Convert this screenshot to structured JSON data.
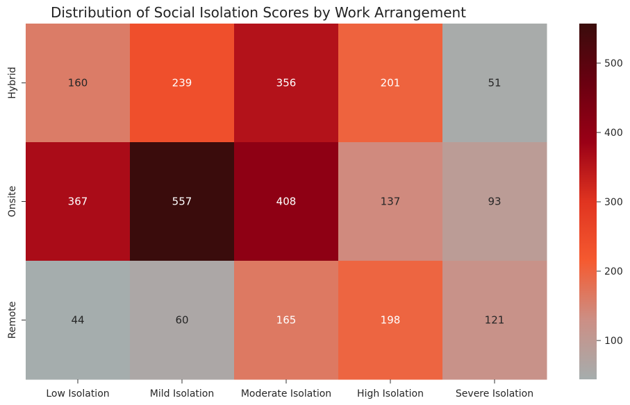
{
  "chart_data": {
    "type": "heatmap",
    "title": "Distribution of Social Isolation Scores by Work Arrangement",
    "xlabel": "",
    "ylabel": "",
    "columns": [
      "Low Isolation",
      "Mild Isolation",
      "Moderate Isolation",
      "High Isolation",
      "Severe Isolation"
    ],
    "rows": [
      "Hybrid",
      "Onsite",
      "Remote"
    ],
    "values": [
      [
        160,
        239,
        356,
        201,
        51
      ],
      [
        367,
        557,
        408,
        137,
        93
      ],
      [
        44,
        60,
        165,
        198,
        121
      ]
    ],
    "colorbar": {
      "min": 44,
      "max": 557,
      "ticks": [
        100,
        200,
        300,
        400,
        500
      ],
      "colors": [
        "#a5adad",
        "#cc8f85",
        "#f55a30",
        "#e03420",
        "#9a0016",
        "#6a0010",
        "#3a0c0c"
      ]
    },
    "grid": false
  }
}
